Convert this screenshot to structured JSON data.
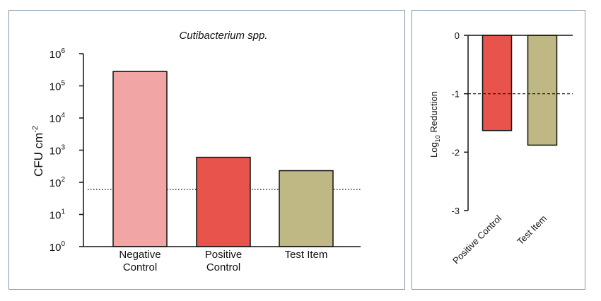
{
  "chart_data": [
    {
      "type": "bar",
      "title": "Cutibacterium spp.",
      "ylabel_base": "CFU cm",
      "ylabel_exp": "-2",
      "y_scale": "log",
      "ylim": [
        1,
        1000000
      ],
      "y_ticks": [
        {
          "base": "10",
          "exp": "0",
          "value": 1
        },
        {
          "base": "10",
          "exp": "1",
          "value": 10
        },
        {
          "base": "10",
          "exp": "2",
          "value": 100
        },
        {
          "base": "10",
          "exp": "3",
          "value": 1000
        },
        {
          "base": "10",
          "exp": "4",
          "value": 10000
        },
        {
          "base": "10",
          "exp": "5",
          "value": 100000
        },
        {
          "base": "10",
          "exp": "6",
          "value": 1000000
        }
      ],
      "categories": [
        [
          "Negative",
          "Control"
        ],
        [
          "Positive",
          "Control"
        ],
        [
          "Test Item"
        ]
      ],
      "values": [
        280000,
        600,
        230
      ],
      "colors": [
        "#f2a5a5",
        "#e8534b",
        "#bfb784"
      ],
      "reference_line": 60,
      "grid": false
    },
    {
      "type": "bar",
      "ylabel_base": "Log",
      "ylabel_sub": "10",
      "ylabel_rest": " Reduction",
      "ylim": [
        -3,
        0
      ],
      "y_ticks": [
        "0",
        "-1",
        "-2",
        "-3"
      ],
      "categories": [
        "Positive Control",
        "Test Item"
      ],
      "values": [
        -1.63,
        -1.88
      ],
      "colors": [
        "#e8534b",
        "#bfb784"
      ],
      "reference_line": -1,
      "grid": false
    }
  ]
}
